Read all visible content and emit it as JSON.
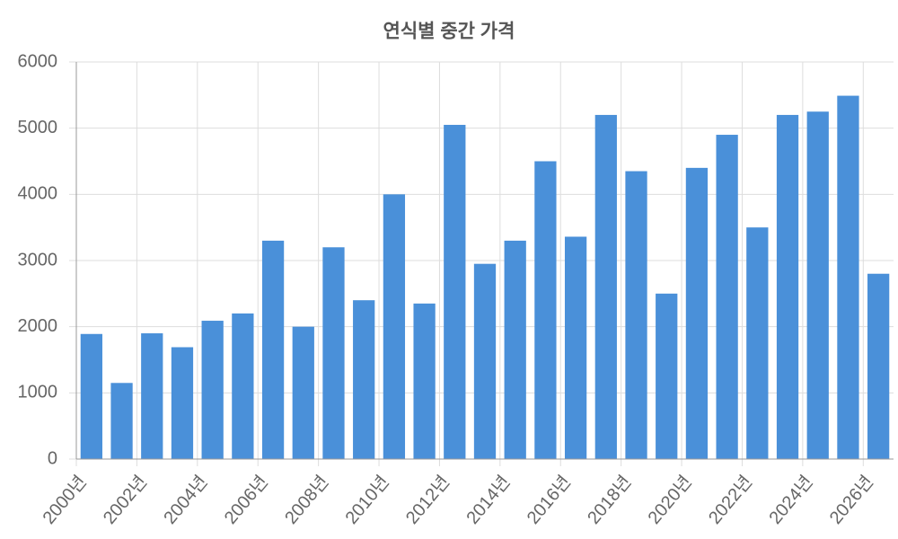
{
  "chart_data": {
    "type": "bar",
    "title": "연식별 중간 가격",
    "categories": [
      "2000년",
      null,
      "2002년",
      null,
      "2004년",
      null,
      "2006년",
      null,
      "2008년",
      null,
      "2010년",
      null,
      "2012년",
      null,
      "2014년",
      null,
      "2016년",
      null,
      "2018년",
      null,
      "2020년",
      null,
      "2022년",
      null,
      "2024년",
      null,
      "2026년"
    ],
    "values": [
      1890,
      1150,
      1900,
      1690,
      2090,
      2200,
      3300,
      2000,
      3200,
      2400,
      4000,
      2350,
      5050,
      2950,
      3300,
      4500,
      3360,
      5200,
      4350,
      2500,
      4400,
      4900,
      3500,
      5200,
      5250,
      5490,
      2800
    ],
    "color": "#4a90d9",
    "ylim": [
      0,
      6000
    ],
    "yticks": [
      0,
      1000,
      2000,
      3000,
      4000,
      5000,
      6000
    ],
    "grid": true
  }
}
